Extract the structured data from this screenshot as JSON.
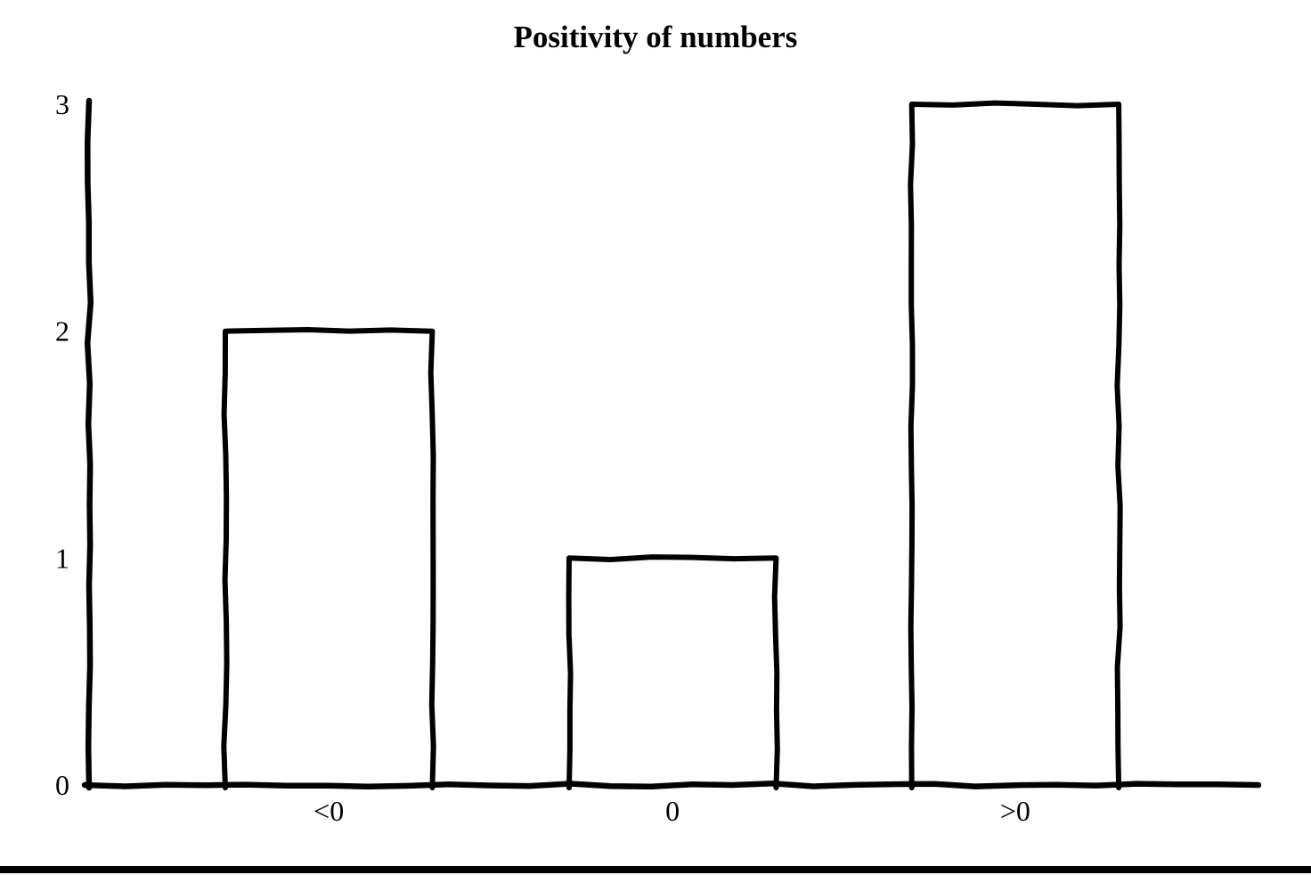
{
  "chart_data": {
    "type": "bar",
    "title": "Positivity of numbers",
    "categories": [
      "<0",
      "0",
      ">0"
    ],
    "values": [
      2,
      1,
      3
    ],
    "xlabel": "",
    "ylabel": "",
    "ylim": [
      0,
      3
    ],
    "yticks": [
      0,
      1,
      2,
      3
    ],
    "grid": false,
    "style": "hand-drawn-outline",
    "colors": {
      "background": "#ffffff",
      "stroke": "#000000",
      "text": "#000000",
      "bar_fill": "none"
    }
  },
  "footer": {
    "rule_color": "#000000"
  }
}
